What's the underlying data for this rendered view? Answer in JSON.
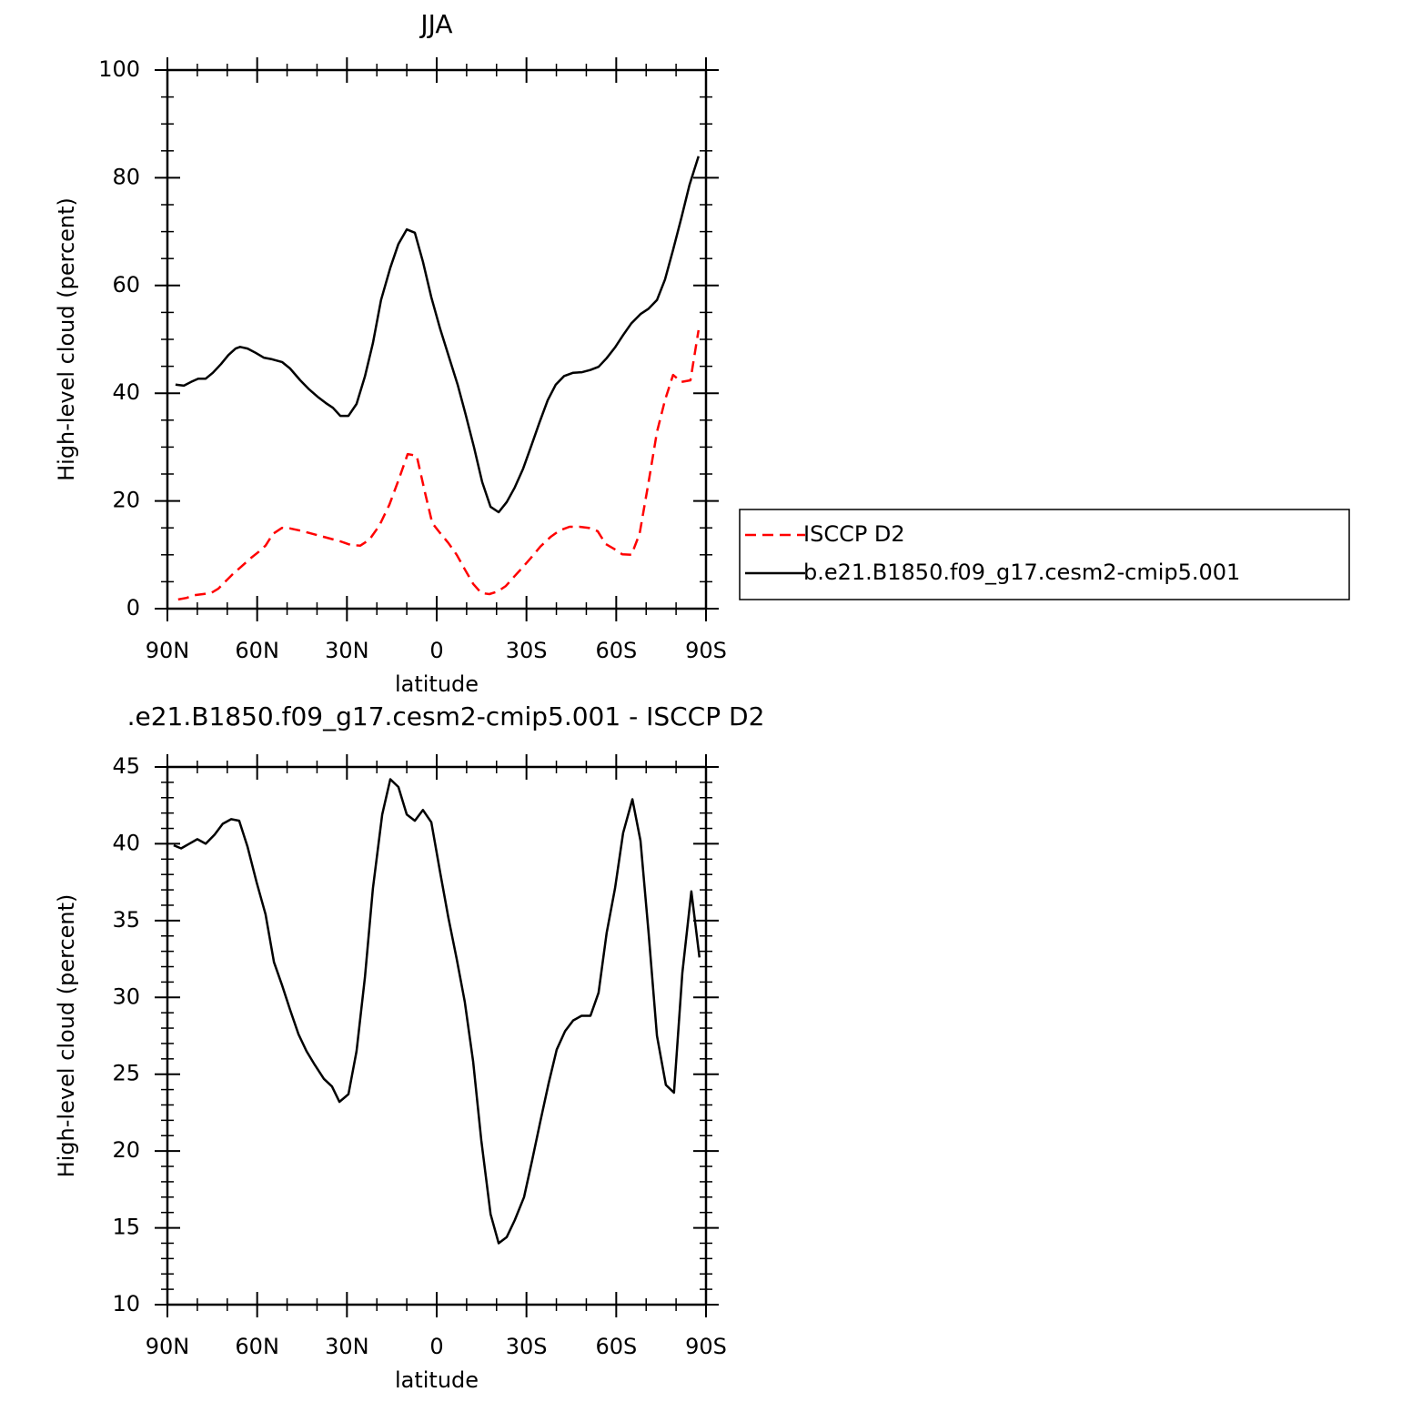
{
  "chart_data": [
    {
      "type": "line",
      "title": "JJA",
      "xlabel": "latitude",
      "ylabel": "High-level cloud (percent)",
      "xlim": [
        90,
        -90
      ],
      "ylim": [
        0,
        100
      ],
      "xticks": [
        {
          "value": 90,
          "label": "90N"
        },
        {
          "value": 60,
          "label": "60N"
        },
        {
          "value": 30,
          "label": "30N"
        },
        0,
        {
          "value": -30,
          "label": "30S"
        },
        {
          "value": -60,
          "label": "60S"
        },
        {
          "value": -90,
          "label": "90S"
        }
      ],
      "xminor": [
        80,
        70,
        50,
        40,
        20,
        10,
        -10,
        -20,
        -40,
        -50,
        -70,
        -80
      ],
      "yticks": [
        0,
        20,
        40,
        60,
        80,
        100
      ],
      "yminor": [
        5,
        10,
        15,
        25,
        30,
        35,
        45,
        50,
        55,
        65,
        70,
        75,
        85,
        90,
        95
      ],
      "legend": "outside right",
      "series": [
        {
          "name": "ISCCP D2",
          "color": "#ff0000",
          "dash": "dashed",
          "x": [
            86.4,
            83.6,
            80.9,
            78.1,
            75.4,
            73.0,
            70.5,
            67.8,
            65.1,
            62.3,
            59.6,
            57.2,
            54.7,
            51.7,
            49.0,
            45.6,
            42.3,
            38.9,
            35.6,
            32.2,
            28.6,
            25.5,
            22.5,
            19.2,
            15.8,
            12.8,
            9.7,
            6.7,
            3.9,
            1.5,
            -1.2,
            -3.9,
            -6.7,
            -9.4,
            -12.2,
            -14.9,
            -17.6,
            -20.4,
            -23.1,
            -25.8,
            -28.6,
            -31.6,
            -34.6,
            -38.0,
            -41.0,
            -44.4,
            -47.7,
            -50.8,
            -53.8,
            -56.5,
            -59.3,
            -62.0,
            -65.1,
            -67.8,
            -70.8,
            -73.6,
            -76.3,
            -79.0,
            -81.8,
            -84.8,
            -87.5
          ],
          "values": [
            1.7,
            2.0,
            2.5,
            2.7,
            2.9,
            3.7,
            5.1,
            6.6,
            7.9,
            9.3,
            10.5,
            11.7,
            13.9,
            15.0,
            14.9,
            14.5,
            14.0,
            13.5,
            13.0,
            12.5,
            11.8,
            11.7,
            12.8,
            15.4,
            19.3,
            23.8,
            28.7,
            28.4,
            21.5,
            15.9,
            14.0,
            12.2,
            10.0,
            7.3,
            4.6,
            2.9,
            2.7,
            3.2,
            4.2,
            5.9,
            7.6,
            9.5,
            11.5,
            13.3,
            14.5,
            15.2,
            15.2,
            15.0,
            14.4,
            12.0,
            11.1,
            10.1,
            10.0,
            13.9,
            23.5,
            32.8,
            38.7,
            43.4,
            42.1,
            42.4,
            51.7
          ]
        },
        {
          "name": "b.e21.B1850.f09_g17.cesm2-cmip5.001",
          "color": "#000000",
          "dash": "solid",
          "x": [
            87.3,
            84.5,
            82.1,
            79.7,
            77.2,
            74.8,
            72.1,
            69.6,
            67.2,
            65.7,
            63.2,
            60.5,
            57.8,
            55.0,
            51.7,
            49.0,
            45.6,
            42.6,
            39.5,
            37.1,
            34.7,
            32.2,
            29.5,
            26.8,
            24.0,
            21.3,
            18.6,
            15.5,
            12.8,
            10.0,
            7.3,
            4.6,
            1.8,
            -1.2,
            -3.9,
            -7.0,
            -9.7,
            -12.5,
            -15.2,
            -18.0,
            -20.7,
            -23.4,
            -26.1,
            -28.9,
            -31.6,
            -34.3,
            -37.1,
            -39.8,
            -42.6,
            -45.6,
            -48.6,
            -51.3,
            -54.1,
            -56.8,
            -59.6,
            -62.3,
            -65.1,
            -68.1,
            -70.8,
            -73.6,
            -76.3,
            -79.0,
            -81.8,
            -84.5,
            -87.5
          ],
          "values": [
            41.6,
            41.4,
            42.1,
            42.7,
            42.7,
            43.8,
            45.4,
            47.1,
            48.3,
            48.6,
            48.3,
            47.5,
            46.6,
            46.3,
            45.8,
            44.6,
            42.4,
            40.7,
            39.2,
            38.2,
            37.3,
            35.8,
            35.8,
            38.0,
            43.1,
            49.3,
            57.3,
            63.3,
            67.7,
            70.4,
            69.8,
            64.4,
            57.8,
            51.9,
            47.1,
            41.6,
            36.0,
            29.9,
            23.5,
            18.9,
            17.9,
            19.8,
            22.5,
            26.0,
            30.2,
            34.5,
            38.7,
            41.6,
            43.2,
            43.8,
            43.9,
            44.3,
            44.9,
            46.5,
            48.5,
            50.8,
            53.0,
            54.7,
            55.7,
            57.3,
            61.1,
            66.6,
            72.6,
            78.7,
            84.0
          ]
        }
      ]
    },
    {
      "type": "line",
      "title": ".e21.B1850.f09_g17.cesm2-cmip5.001 - ISCCP D2",
      "xlabel": "latitude",
      "ylabel": "High-level cloud (percent)",
      "xlim": [
        90,
        -90
      ],
      "ylim": [
        10,
        45
      ],
      "xticks": [
        {
          "value": 90,
          "label": "90N"
        },
        {
          "value": 60,
          "label": "60N"
        },
        {
          "value": 30,
          "label": "30N"
        },
        0,
        {
          "value": -30,
          "label": "30S"
        },
        {
          "value": -60,
          "label": "60S"
        },
        {
          "value": -90,
          "label": "90S"
        }
      ],
      "xminor": [
        80,
        70,
        50,
        40,
        20,
        10,
        -10,
        -20,
        -40,
        -50,
        -70,
        -80
      ],
      "yticks": [
        10,
        15,
        20,
        25,
        30,
        35,
        40,
        45
      ],
      "yminor": [
        11,
        12,
        13,
        14,
        16,
        17,
        18,
        19,
        21,
        22,
        23,
        24,
        26,
        27,
        28,
        29,
        31,
        32,
        33,
        34,
        36,
        37,
        38,
        39,
        41,
        42,
        43,
        44
      ],
      "series": [
        {
          "color": "#000000",
          "dash": "solid",
          "x": [
            87.9,
            85.4,
            82.7,
            80.0,
            77.2,
            74.2,
            71.5,
            68.7,
            66.0,
            63.2,
            60.2,
            57.2,
            54.4,
            51.7,
            49.0,
            46.2,
            43.5,
            40.7,
            37.7,
            35.0,
            32.5,
            29.5,
            26.8,
            24.0,
            21.3,
            18.2,
            15.5,
            12.8,
            10.0,
            7.3,
            4.6,
            1.8,
            -1.2,
            -3.9,
            -6.7,
            -9.4,
            -12.2,
            -14.9,
            -18.0,
            -20.7,
            -23.4,
            -26.1,
            -29.2,
            -31.9,
            -34.6,
            -37.4,
            -40.1,
            -42.9,
            -45.6,
            -48.4,
            -51.4,
            -54.1,
            -56.8,
            -59.6,
            -62.3,
            -65.4,
            -68.1,
            -70.8,
            -73.6,
            -76.6,
            -79.3,
            -82.1,
            -85.1,
            -87.8
          ],
          "values": [
            39.9,
            39.7,
            40.0,
            40.3,
            40.0,
            40.6,
            41.3,
            41.6,
            41.5,
            39.8,
            37.5,
            35.4,
            32.3,
            30.8,
            29.2,
            27.6,
            26.5,
            25.6,
            24.7,
            24.2,
            23.2,
            23.7,
            26.5,
            31.3,
            37.1,
            41.9,
            44.2,
            43.7,
            41.9,
            41.5,
            42.2,
            41.4,
            38.1,
            35.2,
            32.5,
            29.7,
            25.8,
            20.7,
            15.9,
            14.0,
            14.4,
            15.5,
            17.0,
            19.4,
            21.9,
            24.4,
            26.6,
            27.8,
            28.5,
            28.8,
            28.8,
            30.3,
            34.2,
            37.1,
            40.7,
            42.9,
            40.2,
            34.2,
            27.5,
            24.3,
            23.8,
            31.6,
            36.9,
            32.6
          ]
        }
      ]
    }
  ]
}
